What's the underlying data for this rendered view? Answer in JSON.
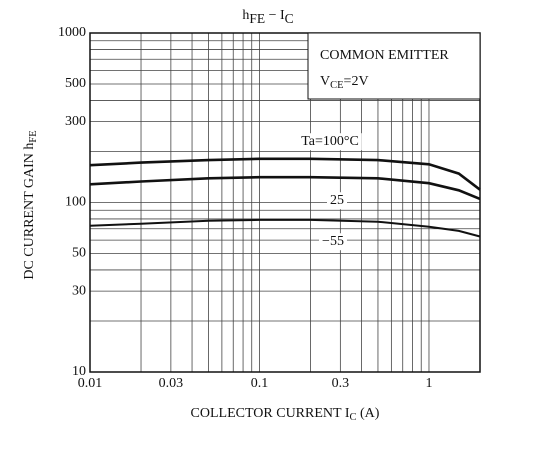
{
  "chart_data": {
    "type": "line",
    "title": [
      {
        "text": "h"
      },
      {
        "text": "FE",
        "sub": true
      },
      {
        "text": " − I"
      },
      {
        "text": "C",
        "sub": true
      }
    ],
    "x_label": [
      {
        "text": "COLLECTOR CURRENT  I"
      },
      {
        "text": "C",
        "sub": true
      },
      {
        "text": "  (A)"
      }
    ],
    "y_label": [
      {
        "text": "DC CURRENT GAIN  h"
      },
      {
        "text": "FE",
        "sub": true
      }
    ],
    "legend_box": [
      [
        {
          "text": "COMMON EMITTER"
        }
      ],
      [
        {
          "text": "V"
        },
        {
          "text": "CE",
          "sub": true
        },
        {
          "text": "=2V"
        }
      ]
    ],
    "xlog": true,
    "ylog": true,
    "grid": true,
    "color": "#111",
    "xlim": [
      0.01,
      2
    ],
    "ylim": [
      10,
      1000
    ],
    "xticks": [
      0.01,
      0.03,
      0.1,
      0.3,
      1
    ],
    "yticks": [
      10,
      30,
      50,
      100,
      300,
      500,
      1000
    ],
    "xminor": [
      0.02,
      0.04,
      0.05,
      0.06,
      0.07,
      0.08,
      0.09,
      0.2,
      0.4,
      0.5,
      0.6,
      0.7,
      0.8,
      0.9,
      2
    ],
    "yminor": [
      20,
      40,
      60,
      70,
      80,
      90,
      200,
      400,
      600,
      700,
      800,
      900
    ],
    "x": [
      0.01,
      0.02,
      0.05,
      0.1,
      0.2,
      0.5,
      1,
      1.5,
      2
    ],
    "series": [
      {
        "name": "Ta=100°C",
        "values": [
          166,
          172,
          178,
          181,
          181,
          178,
          168,
          148,
          119
        ]
      },
      {
        "name": "25",
        "values": [
          128,
          133,
          139,
          141,
          141,
          139,
          130,
          118,
          105
        ]
      },
      {
        "name": "−55",
        "values": [
          73,
          75,
          78,
          79,
          79,
          77,
          72,
          68,
          63
        ]
      }
    ]
  }
}
